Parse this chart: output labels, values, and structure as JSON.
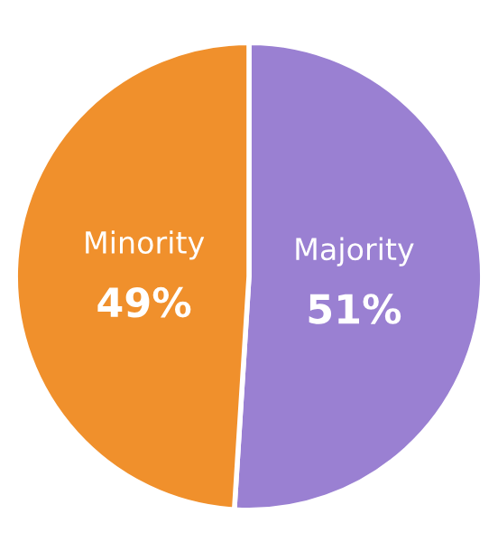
{
  "chart_data": {
    "type": "pie",
    "categories": [
      "Majority",
      "Minority"
    ],
    "values": [
      51,
      49
    ],
    "colors": [
      "#9a80d2",
      "#f0902c"
    ],
    "value_labels": [
      "51%",
      "49%"
    ],
    "legend": false
  }
}
